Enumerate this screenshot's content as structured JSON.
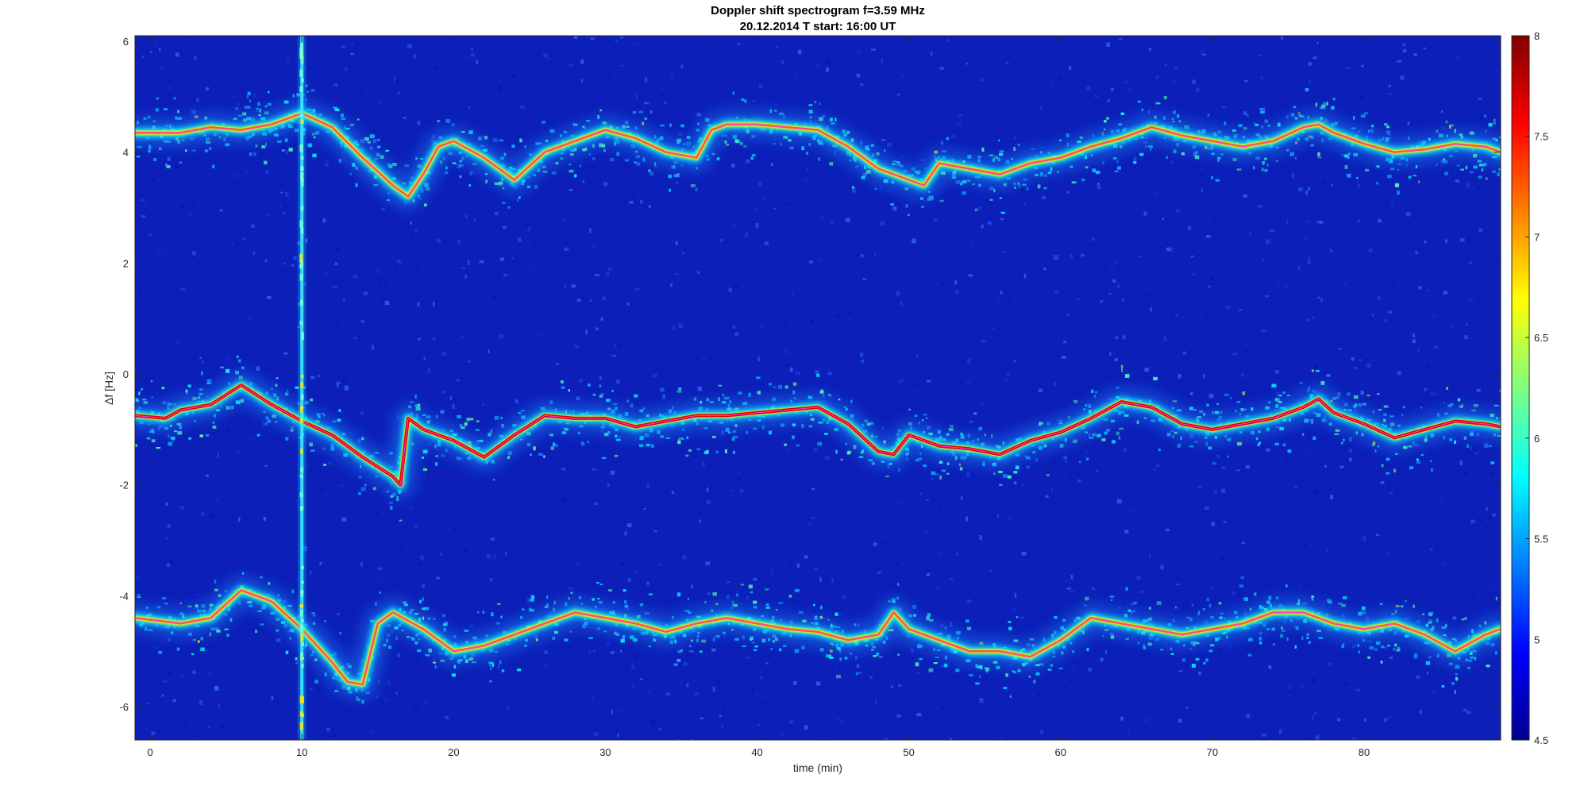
{
  "chart_data": {
    "type": "heatmap",
    "title": "Doppler shift spectrogram f=3.59 MHz",
    "subtitle": "20.12.2014   T start: 16:00 UT",
    "xlabel": "time (min)",
    "ylabel": "Δf [Hz]",
    "xlim": [
      -1,
      89
    ],
    "ylim": [
      -6.6,
      6.1
    ],
    "xticks": [
      0,
      10,
      20,
      30,
      40,
      50,
      60,
      70,
      80
    ],
    "yticks": [
      6,
      4,
      2,
      0,
      -2,
      -4,
      -6
    ],
    "colorbar": {
      "range": [
        4.5,
        8
      ],
      "ticks": [
        8,
        7.5,
        7,
        6.5,
        6,
        5.5,
        5,
        4.5
      ],
      "colormap": "jet",
      "placement": "right"
    },
    "interference_line_x": 10,
    "traces": [
      {
        "x": [
          -1,
          2,
          4,
          6,
          8,
          10,
          12,
          14,
          16,
          17,
          18,
          19,
          20,
          22,
          24,
          26,
          28,
          30,
          32,
          34,
          36,
          37,
          38,
          40,
          42,
          44,
          46,
          48,
          50,
          51,
          52,
          54,
          56,
          58,
          60,
          62,
          64,
          66,
          68,
          70,
          72,
          74,
          76,
          77,
          78,
          80,
          82,
          84,
          86,
          88,
          89
        ],
        "y": [
          4.35,
          4.35,
          4.45,
          4.4,
          4.5,
          4.7,
          4.45,
          3.9,
          3.4,
          3.2,
          3.6,
          4.1,
          4.2,
          3.9,
          3.5,
          4.0,
          4.2,
          4.4,
          4.25,
          4.0,
          3.9,
          4.4,
          4.5,
          4.5,
          4.45,
          4.4,
          4.1,
          3.7,
          3.5,
          3.4,
          3.8,
          3.7,
          3.6,
          3.8,
          3.9,
          4.1,
          4.25,
          4.45,
          4.3,
          4.2,
          4.1,
          4.2,
          4.45,
          4.5,
          4.35,
          4.15,
          4.0,
          4.05,
          4.15,
          4.1,
          4.0
        ],
        "intensity": 7.0
      },
      {
        "x": [
          -1,
          1,
          2,
          4,
          6,
          8,
          10,
          12,
          14,
          16,
          16.5,
          17,
          18,
          20,
          22,
          24,
          26,
          28,
          30,
          32,
          34,
          36,
          38,
          40,
          42,
          44,
          46,
          48,
          49,
          50,
          52,
          54,
          56,
          58,
          60,
          62,
          64,
          66,
          68,
          70,
          72,
          74,
          76,
          77,
          78,
          80,
          82,
          84,
          86,
          88,
          89
        ],
        "y": [
          -0.75,
          -0.8,
          -0.65,
          -0.55,
          -0.2,
          -0.55,
          -0.85,
          -1.1,
          -1.5,
          -1.85,
          -2.0,
          -0.8,
          -1.0,
          -1.2,
          -1.5,
          -1.1,
          -0.75,
          -0.8,
          -0.8,
          -0.95,
          -0.85,
          -0.75,
          -0.75,
          -0.7,
          -0.65,
          -0.6,
          -0.9,
          -1.4,
          -1.45,
          -1.1,
          -1.3,
          -1.35,
          -1.45,
          -1.2,
          -1.05,
          -0.8,
          -0.5,
          -0.6,
          -0.9,
          -1.0,
          -0.9,
          -0.8,
          -0.6,
          -0.45,
          -0.7,
          -0.9,
          -1.15,
          -1.0,
          -0.85,
          -0.9,
          -0.95
        ],
        "intensity": 7.8
      },
      {
        "x": [
          -1,
          2,
          4,
          6,
          8,
          10,
          12,
          13,
          14,
          15,
          16,
          18,
          20,
          22,
          24,
          26,
          28,
          30,
          32,
          34,
          36,
          38,
          40,
          42,
          44,
          46,
          48,
          49,
          50,
          52,
          54,
          56,
          58,
          60,
          62,
          64,
          66,
          68,
          70,
          72,
          74,
          76,
          78,
          80,
          82,
          84,
          86,
          88,
          89
        ],
        "y": [
          -4.4,
          -4.5,
          -4.4,
          -3.9,
          -4.1,
          -4.6,
          -5.2,
          -5.55,
          -5.6,
          -4.5,
          -4.3,
          -4.6,
          -5.0,
          -4.9,
          -4.7,
          -4.5,
          -4.3,
          -4.4,
          -4.5,
          -4.65,
          -4.5,
          -4.4,
          -4.5,
          -4.6,
          -4.65,
          -4.8,
          -4.7,
          -4.3,
          -4.6,
          -4.8,
          -5.0,
          -5.0,
          -5.1,
          -4.8,
          -4.4,
          -4.5,
          -4.6,
          -4.7,
          -4.6,
          -4.5,
          -4.3,
          -4.3,
          -4.5,
          -4.6,
          -4.5,
          -4.7,
          -5.0,
          -4.7,
          -4.6
        ],
        "intensity": 7.2
      }
    ]
  }
}
